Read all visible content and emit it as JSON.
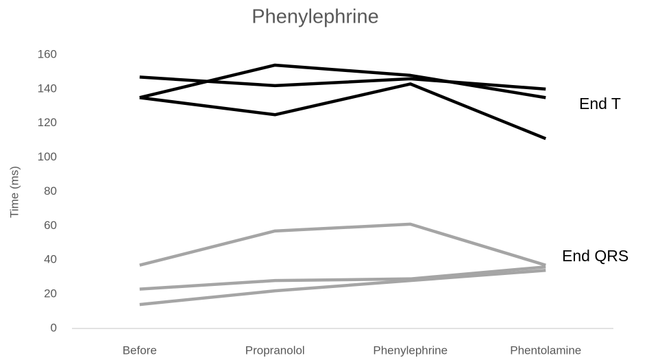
{
  "chart_data": {
    "type": "line",
    "title": "Phenylephrine",
    "y_label": "Time (ms)",
    "categories": [
      "Before",
      "Propranolol",
      "Phenylephrine",
      "Phentolamine"
    ],
    "series": [
      {
        "color": "#000000",
        "values": [
          147,
          142,
          146,
          140
        ]
      },
      {
        "color": "#000000",
        "values": [
          135,
          154,
          148,
          135
        ]
      },
      {
        "color": "#000000",
        "values": [
          135,
          125,
          143,
          111
        ]
      },
      {
        "color": "#a5a5a5",
        "values": [
          37,
          57,
          61,
          37
        ]
      },
      {
        "color": "#a5a5a5",
        "values": [
          23,
          28,
          29,
          36
        ]
      },
      {
        "color": "#a5a5a5",
        "values": [
          14,
          22,
          28,
          34
        ]
      }
    ],
    "annotations": [
      "End T",
      "End QRS"
    ],
    "ylim": [
      0,
      160
    ],
    "yticks": [
      0,
      20,
      40,
      60,
      80,
      100,
      120,
      140,
      160
    ],
    "grid": false
  }
}
